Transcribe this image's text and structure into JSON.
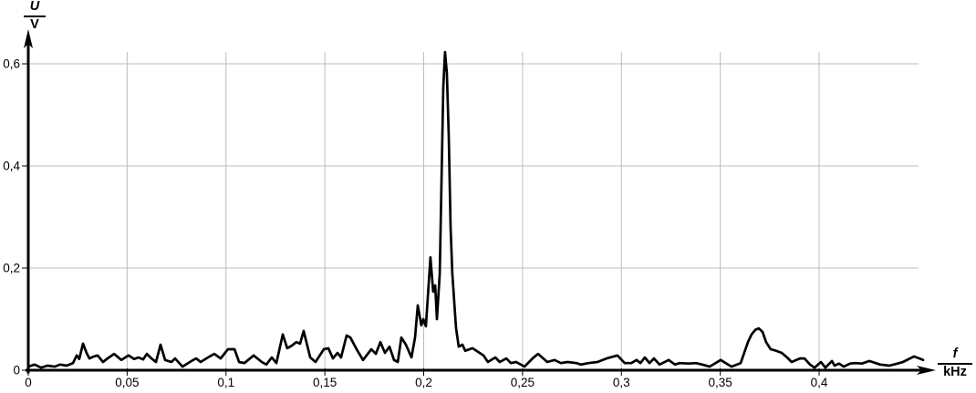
{
  "chart_data": {
    "type": "line",
    "title": "",
    "ylabel_numerator": "U",
    "ylabel_denominator": "V",
    "xlabel_numerator": "f",
    "xlabel_denominator": "kHz",
    "xlim": [
      0,
      0.45
    ],
    "ylim": [
      0,
      0.65
    ],
    "grid": true,
    "legend": "none",
    "line_color": "#000000",
    "grid_color": "#bdbdbd",
    "background_color": "#ffffff",
    "x_ticks": [
      {
        "value": 0,
        "label": "0"
      },
      {
        "value": 0.05,
        "label": "0,05"
      },
      {
        "value": 0.1,
        "label": "0,1"
      },
      {
        "value": 0.15,
        "label": "0,15"
      },
      {
        "value": 0.2,
        "label": "0,2"
      },
      {
        "value": 0.25,
        "label": "0,25"
      },
      {
        "value": 0.3,
        "label": "0,3"
      },
      {
        "value": 0.35,
        "label": "0,35"
      },
      {
        "value": 0.4,
        "label": "0,4"
      }
    ],
    "y_ticks": [
      {
        "value": 0,
        "label": "0"
      },
      {
        "value": 0.2,
        "label": "0,2"
      },
      {
        "value": 0.4,
        "label": "0,4"
      },
      {
        "value": 0.6,
        "label": "0,6"
      }
    ],
    "points": [
      [
        0.0,
        0.007
      ],
      [
        0.0032,
        0.011
      ],
      [
        0.0065,
        0.005
      ],
      [
        0.0097,
        0.009
      ],
      [
        0.0134,
        0.007
      ],
      [
        0.0161,
        0.011
      ],
      [
        0.0194,
        0.009
      ],
      [
        0.0226,
        0.014
      ],
      [
        0.0245,
        0.029
      ],
      [
        0.0258,
        0.022
      ],
      [
        0.0277,
        0.052
      ],
      [
        0.0295,
        0.034
      ],
      [
        0.0309,
        0.023
      ],
      [
        0.0332,
        0.027
      ],
      [
        0.0351,
        0.029
      ],
      [
        0.0378,
        0.016
      ],
      [
        0.0401,
        0.023
      ],
      [
        0.0434,
        0.032
      ],
      [
        0.0471,
        0.02
      ],
      [
        0.0507,
        0.029
      ],
      [
        0.0535,
        0.022
      ],
      [
        0.0558,
        0.025
      ],
      [
        0.0581,
        0.021
      ],
      [
        0.06,
        0.032
      ],
      [
        0.0623,
        0.023
      ],
      [
        0.0646,
        0.016
      ],
      [
        0.0669,
        0.05
      ],
      [
        0.0692,
        0.02
      ],
      [
        0.0724,
        0.016
      ],
      [
        0.0743,
        0.023
      ],
      [
        0.078,
        0.007
      ],
      [
        0.0817,
        0.016
      ],
      [
        0.0849,
        0.023
      ],
      [
        0.0872,
        0.016
      ],
      [
        0.0909,
        0.025
      ],
      [
        0.0941,
        0.032
      ],
      [
        0.0973,
        0.023
      ],
      [
        0.101,
        0.041
      ],
      [
        0.1043,
        0.041
      ],
      [
        0.1066,
        0.016
      ],
      [
        0.1093,
        0.014
      ],
      [
        0.114,
        0.029
      ],
      [
        0.1181,
        0.016
      ],
      [
        0.1204,
        0.011
      ],
      [
        0.1232,
        0.025
      ],
      [
        0.1255,
        0.014
      ],
      [
        0.1287,
        0.07
      ],
      [
        0.131,
        0.043
      ],
      [
        0.1333,
        0.048
      ],
      [
        0.1356,
        0.055
      ],
      [
        0.1375,
        0.052
      ],
      [
        0.1393,
        0.077
      ],
      [
        0.1426,
        0.025
      ],
      [
        0.1453,
        0.016
      ],
      [
        0.1495,
        0.041
      ],
      [
        0.1518,
        0.043
      ],
      [
        0.1541,
        0.023
      ],
      [
        0.1564,
        0.034
      ],
      [
        0.1582,
        0.025
      ],
      [
        0.161,
        0.068
      ],
      [
        0.1629,
        0.064
      ],
      [
        0.1665,
        0.038
      ],
      [
        0.1693,
        0.02
      ],
      [
        0.1735,
        0.041
      ],
      [
        0.1758,
        0.032
      ],
      [
        0.1781,
        0.055
      ],
      [
        0.1804,
        0.034
      ],
      [
        0.1827,
        0.046
      ],
      [
        0.185,
        0.02
      ],
      [
        0.1869,
        0.016
      ],
      [
        0.1887,
        0.064
      ],
      [
        0.191,
        0.05
      ],
      [
        0.1938,
        0.025
      ],
      [
        0.1956,
        0.064
      ],
      [
        0.197,
        0.127
      ],
      [
        0.1988,
        0.088
      ],
      [
        0.1998,
        0.1
      ],
      [
        0.2011,
        0.086
      ],
      [
        0.2034,
        0.221
      ],
      [
        0.2048,
        0.154
      ],
      [
        0.2058,
        0.166
      ],
      [
        0.2067,
        0.1
      ],
      [
        0.2081,
        0.189
      ],
      [
        0.209,
        0.368
      ],
      [
        0.2099,
        0.555
      ],
      [
        0.2108,
        0.623
      ],
      [
        0.2117,
        0.582
      ],
      [
        0.2127,
        0.457
      ],
      [
        0.2136,
        0.279
      ],
      [
        0.2145,
        0.189
      ],
      [
        0.2154,
        0.136
      ],
      [
        0.2164,
        0.082
      ],
      [
        0.2177,
        0.046
      ],
      [
        0.2196,
        0.05
      ],
      [
        0.221,
        0.038
      ],
      [
        0.2247,
        0.043
      ],
      [
        0.2302,
        0.029
      ],
      [
        0.2325,
        0.016
      ],
      [
        0.2362,
        0.025
      ],
      [
        0.2385,
        0.016
      ],
      [
        0.2418,
        0.023
      ],
      [
        0.2441,
        0.014
      ],
      [
        0.2468,
        0.016
      ],
      [
        0.251,
        0.007
      ],
      [
        0.2556,
        0.025
      ],
      [
        0.2579,
        0.032
      ],
      [
        0.2625,
        0.016
      ],
      [
        0.2662,
        0.02
      ],
      [
        0.2694,
        0.014
      ],
      [
        0.2727,
        0.016
      ],
      [
        0.2773,
        0.014
      ],
      [
        0.2796,
        0.011
      ],
      [
        0.2833,
        0.014
      ],
      [
        0.2879,
        0.016
      ],
      [
        0.2925,
        0.023
      ],
      [
        0.298,
        0.029
      ],
      [
        0.3017,
        0.014
      ],
      [
        0.305,
        0.014
      ],
      [
        0.3077,
        0.02
      ],
      [
        0.3096,
        0.014
      ],
      [
        0.3119,
        0.025
      ],
      [
        0.3142,
        0.014
      ],
      [
        0.3165,
        0.023
      ],
      [
        0.3193,
        0.011
      ],
      [
        0.3239,
        0.02
      ],
      [
        0.3271,
        0.011
      ],
      [
        0.3294,
        0.014
      ],
      [
        0.334,
        0.013
      ],
      [
        0.3377,
        0.014
      ],
      [
        0.3409,
        0.011
      ],
      [
        0.3446,
        0.007
      ],
      [
        0.3502,
        0.02
      ],
      [
        0.3557,
        0.007
      ],
      [
        0.3603,
        0.014
      ],
      [
        0.364,
        0.055
      ],
      [
        0.3658,
        0.07
      ],
      [
        0.3677,
        0.079
      ],
      [
        0.3695,
        0.082
      ],
      [
        0.3714,
        0.075
      ],
      [
        0.3732,
        0.055
      ],
      [
        0.3755,
        0.041
      ],
      [
        0.3783,
        0.038
      ],
      [
        0.3811,
        0.034
      ],
      [
        0.3838,
        0.025
      ],
      [
        0.3861,
        0.016
      ],
      [
        0.3903,
        0.023
      ],
      [
        0.3926,
        0.023
      ],
      [
        0.3954,
        0.011
      ],
      [
        0.3977,
        0.005
      ],
      [
        0.4009,
        0.016
      ],
      [
        0.4032,
        0.005
      ],
      [
        0.4065,
        0.018
      ],
      [
        0.4078,
        0.009
      ],
      [
        0.4101,
        0.013
      ],
      [
        0.4125,
        0.007
      ],
      [
        0.4157,
        0.013
      ],
      [
        0.4184,
        0.014
      ],
      [
        0.4217,
        0.013
      ],
      [
        0.4254,
        0.018
      ],
      [
        0.4286,
        0.014
      ],
      [
        0.4309,
        0.011
      ],
      [
        0.4355,
        0.009
      ],
      [
        0.4397,
        0.013
      ],
      [
        0.4424,
        0.016
      ],
      [
        0.448,
        0.027
      ],
      [
        0.4507,
        0.023
      ],
      [
        0.4526,
        0.02
      ]
    ]
  }
}
